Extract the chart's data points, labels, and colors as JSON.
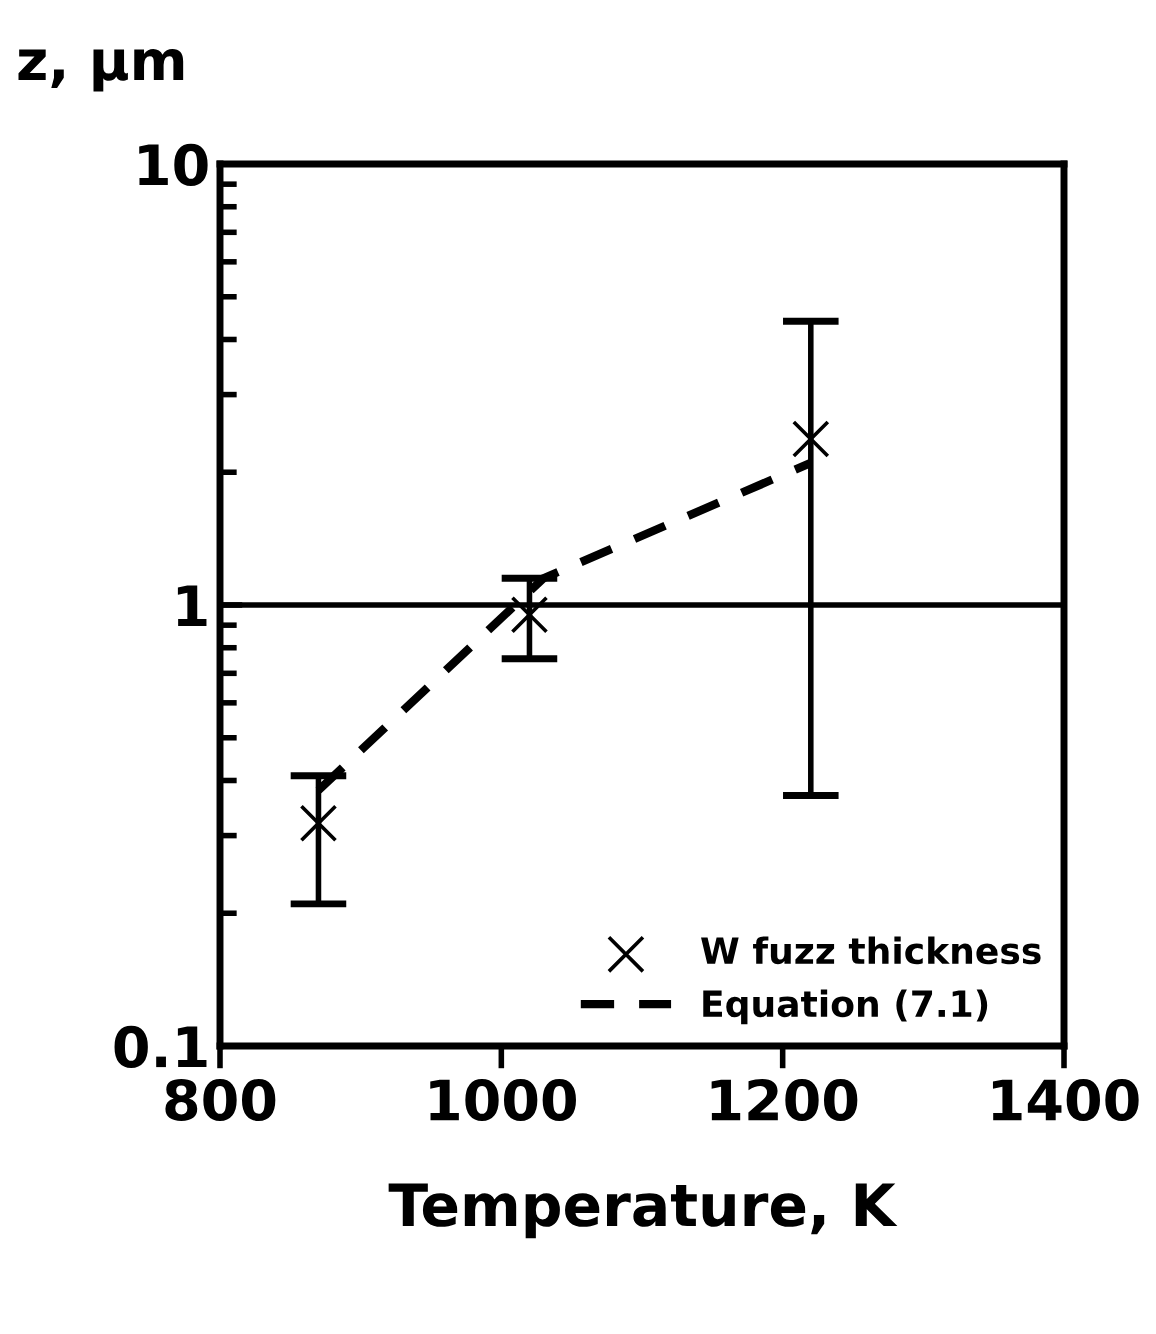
{
  "chart_data": {
    "type": "scatter",
    "xlabel": "Temperature, K",
    "ylabel": "z, μm",
    "log": "y",
    "xlim": [
      800,
      1400
    ],
    "xticks": [
      800,
      1000,
      1200,
      1400
    ],
    "ylim": [
      0.1,
      10
    ],
    "yticks": [
      0.1,
      1,
      10
    ],
    "grid": "y",
    "legend": "bottom right",
    "series": [
      {
        "name": "W fuzz thickness",
        "marker": "cross",
        "color": "#000000",
        "x": [
          870,
          1020,
          1220
        ],
        "values": [
          0.32,
          0.95,
          2.38
        ],
        "errors": [
          [
            0.21,
            0.41
          ],
          [
            0.755,
            1.15
          ],
          [
            0.37,
            4.4
          ]
        ]
      },
      {
        "name": "Equation (7.1)",
        "type": "line",
        "line_style": "dashed",
        "marker": "none",
        "color": "#000000",
        "x": [
          870,
          1030,
          1220
        ],
        "values": [
          0.38,
          1.15,
          2.1
        ]
      }
    ]
  }
}
